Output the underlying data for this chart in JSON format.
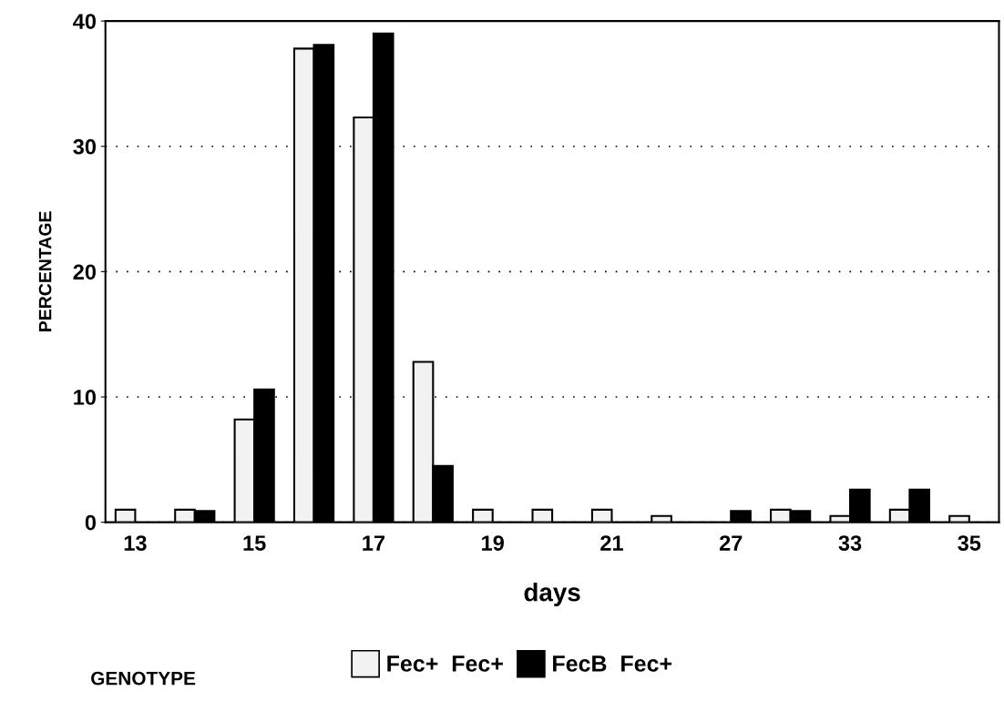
{
  "chart_data": {
    "type": "bar",
    "xlabel": "days",
    "ylabel": "PERCENTAGE",
    "legend_title": "GENOTYPE",
    "categories": [
      "13",
      null,
      "15",
      null,
      "17",
      null,
      "19",
      null,
      "21",
      null,
      "27",
      null,
      "33",
      null,
      "35"
    ],
    "series": [
      {
        "name": "Fec+  Fec+",
        "color": "#f2f2f2",
        "values": [
          1.0,
          1.0,
          8.2,
          37.8,
          32.3,
          12.8,
          1.0,
          1.0,
          1.0,
          0.5,
          null,
          1.0,
          0.5,
          1.0,
          0.5
        ]
      },
      {
        "name": "FecB  Fec+",
        "color": "#000000",
        "values": [
          null,
          0.9,
          10.6,
          38.1,
          39.0,
          4.5,
          null,
          null,
          null,
          null,
          0.9,
          0.9,
          2.6,
          2.6,
          null
        ]
      }
    ],
    "ylim": [
      0,
      40
    ],
    "yticks": [
      0,
      10,
      20,
      30,
      40
    ],
    "grid": "y",
    "legend": "bottom"
  }
}
